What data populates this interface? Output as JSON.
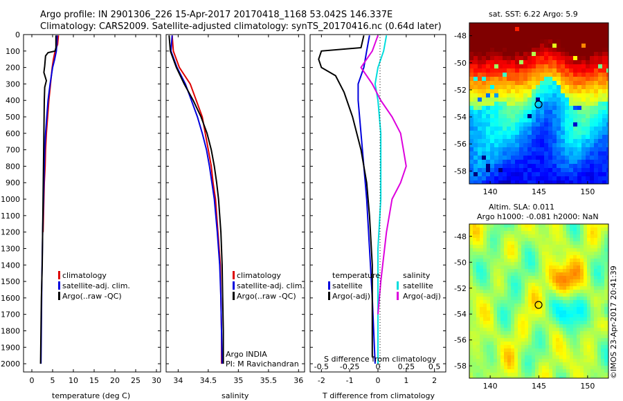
{
  "header": {
    "line1": "Argo profile: IN 2901306_226 15-Apr-2017 20170418_1168 53.042S 146.337E",
    "line2": "Climatology: CARS2009. Satellite-adjusted climatology: synTS_20170416.nc (0.64d later)"
  },
  "chart_data": [
    {
      "type": "line",
      "xlabel": "temperature (deg C)",
      "xlim": [
        -2,
        31
      ],
      "ylim": [
        0,
        2050
      ],
      "y_ticks": [
        0,
        100,
        200,
        300,
        400,
        500,
        600,
        700,
        800,
        900,
        1000,
        1100,
        1200,
        1300,
        1400,
        1500,
        1600,
        1700,
        1800,
        1900,
        2000
      ],
      "x_ticks": [
        0,
        5,
        10,
        15,
        20,
        25,
        30
      ],
      "legend": [
        "climatology",
        "satellite-adj. clim.",
        "Argo(..raw -QC)"
      ],
      "legend_position": "lower-center",
      "series": [
        {
          "color": "#dd0000",
          "points": [
            [
              6.4,
              5
            ],
            [
              6.2,
              60
            ],
            [
              5.6,
              100
            ],
            [
              5.2,
              150
            ],
            [
              4.9,
              200
            ],
            [
              4.5,
              300
            ],
            [
              4.1,
              400
            ],
            [
              3.8,
              500
            ],
            [
              3.5,
              600
            ],
            [
              3.3,
              700
            ],
            [
              3.2,
              800
            ],
            [
              3.0,
              900
            ],
            [
              2.9,
              1000
            ],
            [
              2.7,
              1200
            ]
          ]
        },
        {
          "color": "#0000dd",
          "points": [
            [
              6.1,
              5
            ],
            [
              6.0,
              60
            ],
            [
              5.9,
              100
            ],
            [
              5.5,
              150
            ],
            [
              5.0,
              200
            ],
            [
              4.4,
              300
            ],
            [
              3.9,
              400
            ],
            [
              3.6,
              500
            ],
            [
              3.3,
              600
            ],
            [
              3.1,
              700
            ],
            [
              3.0,
              800
            ],
            [
              2.8,
              1000
            ],
            [
              2.6,
              1200
            ],
            [
              2.4,
              1500
            ],
            [
              2.2,
              2000
            ]
          ]
        },
        {
          "color": "#000000",
          "points": [
            [
              5.8,
              5
            ],
            [
              5.8,
              80
            ],
            [
              5.6,
              100
            ],
            [
              3.9,
              110
            ],
            [
              3.3,
              130
            ],
            [
              3.1,
              190
            ],
            [
              2.9,
              230
            ],
            [
              3.5,
              280
            ],
            [
              3.1,
              320
            ],
            [
              3.0,
              400
            ],
            [
              2.9,
              600
            ],
            [
              2.8,
              800
            ],
            [
              2.7,
              1000
            ],
            [
              2.6,
              1200
            ],
            [
              2.5,
              1400
            ],
            [
              2.3,
              1600
            ],
            [
              2.2,
              1800
            ],
            [
              2.1,
              2000
            ]
          ]
        }
      ]
    },
    {
      "type": "line",
      "xlabel": "salinity",
      "xlim": [
        33.8,
        36.1
      ],
      "ylim": [
        0,
        2050
      ],
      "x_ticks": [
        34,
        34.5,
        35,
        35.5,
        36
      ],
      "legend": [
        "climatology",
        "satellite-adj. clim.",
        "Argo(..raw -QC)"
      ],
      "legend_position": "lower-right",
      "annotation": [
        "Argo INDIA",
        "PI: M Ravichandran"
      ],
      "series": [
        {
          "color": "#dd0000",
          "points": [
            [
              33.9,
              5
            ],
            [
              33.92,
              100
            ],
            [
              34.02,
              200
            ],
            [
              34.2,
              300
            ],
            [
              34.3,
              400
            ],
            [
              34.4,
              500
            ],
            [
              34.45,
              600
            ],
            [
              34.5,
              700
            ],
            [
              34.55,
              800
            ],
            [
              34.58,
              900
            ],
            [
              34.62,
              1000
            ],
            [
              34.66,
              1200
            ],
            [
              34.7,
              1400
            ],
            [
              34.71,
              1600
            ],
            [
              34.72,
              1800
            ],
            [
              34.72,
              2000
            ]
          ]
        },
        {
          "color": "#0000dd",
          "points": [
            [
              33.9,
              5
            ],
            [
              33.88,
              100
            ],
            [
              33.98,
              200
            ],
            [
              34.12,
              300
            ],
            [
              34.22,
              400
            ],
            [
              34.32,
              500
            ],
            [
              34.4,
              600
            ],
            [
              34.47,
              700
            ],
            [
              34.52,
              800
            ],
            [
              34.56,
              900
            ],
            [
              34.6,
              1000
            ],
            [
              34.65,
              1200
            ],
            [
              34.69,
              1400
            ],
            [
              34.71,
              1600
            ],
            [
              34.72,
              1800
            ],
            [
              34.73,
              2000
            ]
          ]
        },
        {
          "color": "#000000",
          "points": [
            [
              33.85,
              5
            ],
            [
              33.87,
              100
            ],
            [
              33.97,
              200
            ],
            [
              34.1,
              300
            ],
            [
              34.25,
              400
            ],
            [
              34.38,
              500
            ],
            [
              34.48,
              600
            ],
            [
              34.55,
              700
            ],
            [
              34.6,
              800
            ],
            [
              34.64,
              900
            ],
            [
              34.67,
              1000
            ],
            [
              34.71,
              1200
            ],
            [
              34.73,
              1400
            ],
            [
              34.74,
              1600
            ],
            [
              34.75,
              1800
            ],
            [
              34.75,
              2000
            ]
          ]
        }
      ]
    },
    {
      "type": "line",
      "xlabel": "T difference from climatology",
      "xlabel2": "S difference from climatology",
      "x_ticks": [
        -2,
        -1,
        0,
        1,
        2
      ],
      "x_ticks_top": [
        -0.5,
        -0.25,
        0,
        0.25,
        0.5
      ],
      "xlim": [
        -2.4,
        2.4
      ],
      "ylim": [
        0,
        2050
      ],
      "legend_left": {
        "title": "temperature",
        "items": [
          "satellite",
          "Argo(-adj)"
        ]
      },
      "legend_right": {
        "title": "salinity",
        "items": [
          "satellite",
          "Argo(-adj)"
        ]
      },
      "legend_position": "lower-center",
      "series": [
        {
          "name": "temperature satellite",
          "color": "#0000dd",
          "points": [
            [
              -0.3,
              5
            ],
            [
              -0.4,
              100
            ],
            [
              -0.5,
              200
            ],
            [
              -0.7,
              300
            ],
            [
              -0.7,
              400
            ],
            [
              -0.6,
              600
            ],
            [
              -0.5,
              800
            ],
            [
              -0.4,
              1000
            ],
            [
              -0.3,
              1300
            ],
            [
              -0.2,
              1600
            ],
            [
              -0.1,
              2000
            ]
          ]
        },
        {
          "name": "temperature Argo(-adj)",
          "color": "#000000",
          "points": [
            [
              -0.5,
              5
            ],
            [
              -0.6,
              80
            ],
            [
              -2.0,
              100
            ],
            [
              -2.1,
              150
            ],
            [
              -2.0,
              200
            ],
            [
              -1.5,
              250
            ],
            [
              -1.2,
              350
            ],
            [
              -0.9,
              500
            ],
            [
              -0.6,
              700
            ],
            [
              -0.4,
              900
            ],
            [
              -0.3,
              1100
            ],
            [
              -0.2,
              1400
            ],
            [
              -0.2,
              1800
            ],
            [
              -0.2,
              1960
            ]
          ]
        },
        {
          "name": "salinity satellite",
          "color": "#00dddd",
          "points": [
            [
              0.3,
              5
            ],
            [
              0.2,
              100
            ],
            [
              0.0,
              200
            ],
            [
              -0.1,
              300
            ],
            [
              0.0,
              400
            ],
            [
              0.1,
              600
            ],
            [
              0.1,
              800
            ],
            [
              0.1,
              1000
            ],
            [
              0.0,
              1300
            ],
            [
              0.0,
              1600
            ],
            [
              0.0,
              2000
            ]
          ]
        },
        {
          "name": "salinity Argo(-adj)",
          "color": "#dd00dd",
          "points": [
            [
              0.0,
              5
            ],
            [
              -0.2,
              100
            ],
            [
              -0.6,
              200
            ],
            [
              -0.2,
              300
            ],
            [
              0.1,
              400
            ],
            [
              0.5,
              500
            ],
            [
              0.8,
              600
            ],
            [
              0.9,
              700
            ],
            [
              1.0,
              800
            ],
            [
              0.8,
              900
            ],
            [
              0.5,
              1000
            ],
            [
              0.3,
              1200
            ],
            [
              0.1,
              1500
            ],
            [
              0.0,
              1700
            ]
          ]
        }
      ]
    }
  ],
  "sst_map": {
    "title": "sat. SST: 6.22 Argo: 5.9",
    "x_ticks": [
      "140",
      "145",
      "150"
    ],
    "y_ticks": [
      "-48",
      "-50",
      "-52",
      "-54",
      "-56",
      "-58"
    ]
  },
  "sla_map": {
    "title1": "Altim. SLA: 0.011",
    "title2": "Argo h1000: -0.081 h2000: NaN",
    "x_ticks": [
      "140",
      "145",
      "150"
    ],
    "y_ticks": [
      "-48",
      "-50",
      "-52",
      "-54",
      "-56",
      "-58"
    ],
    "credit": "©IMOS 23-Apr-2017 20:41:39"
  }
}
